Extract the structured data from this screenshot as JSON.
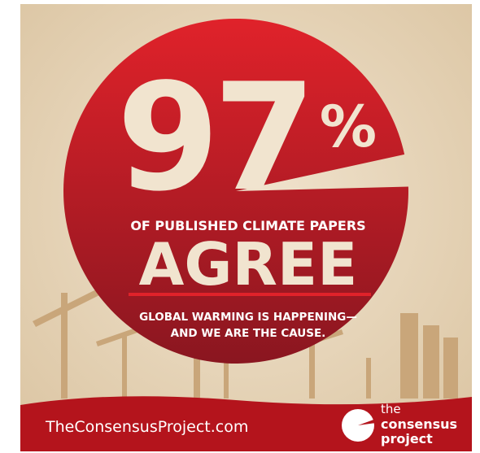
{
  "headline": {
    "big_number": 97,
    "percent_sign": "%",
    "lead": "OF PUBLISHED CLIMATE PAPERS",
    "verb": "AGREE",
    "statement_lines": [
      "GLOBAL WARMING IS HAPPENING—",
      "AND WE ARE THE CAUSE."
    ]
  },
  "footer": {
    "website": "TheConsensusProject.com",
    "logo_lines": [
      "the",
      "consensus",
      "project"
    ]
  }
}
